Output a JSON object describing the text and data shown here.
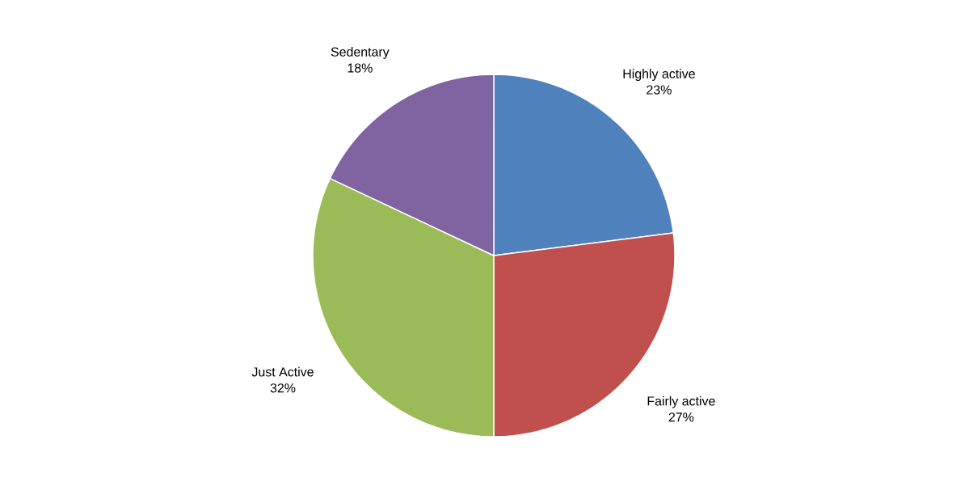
{
  "chart_data": {
    "type": "pie",
    "categories": [
      "Highly active",
      "Fairly active",
      "Just Active",
      "Sedentary"
    ],
    "values": [
      23,
      27,
      32,
      18
    ],
    "value_labels": [
      "23%",
      "27%",
      "32%",
      "18%"
    ],
    "colors": [
      "#4f81bd",
      "#c0504d",
      "#9bbb59",
      "#8064a2"
    ]
  }
}
